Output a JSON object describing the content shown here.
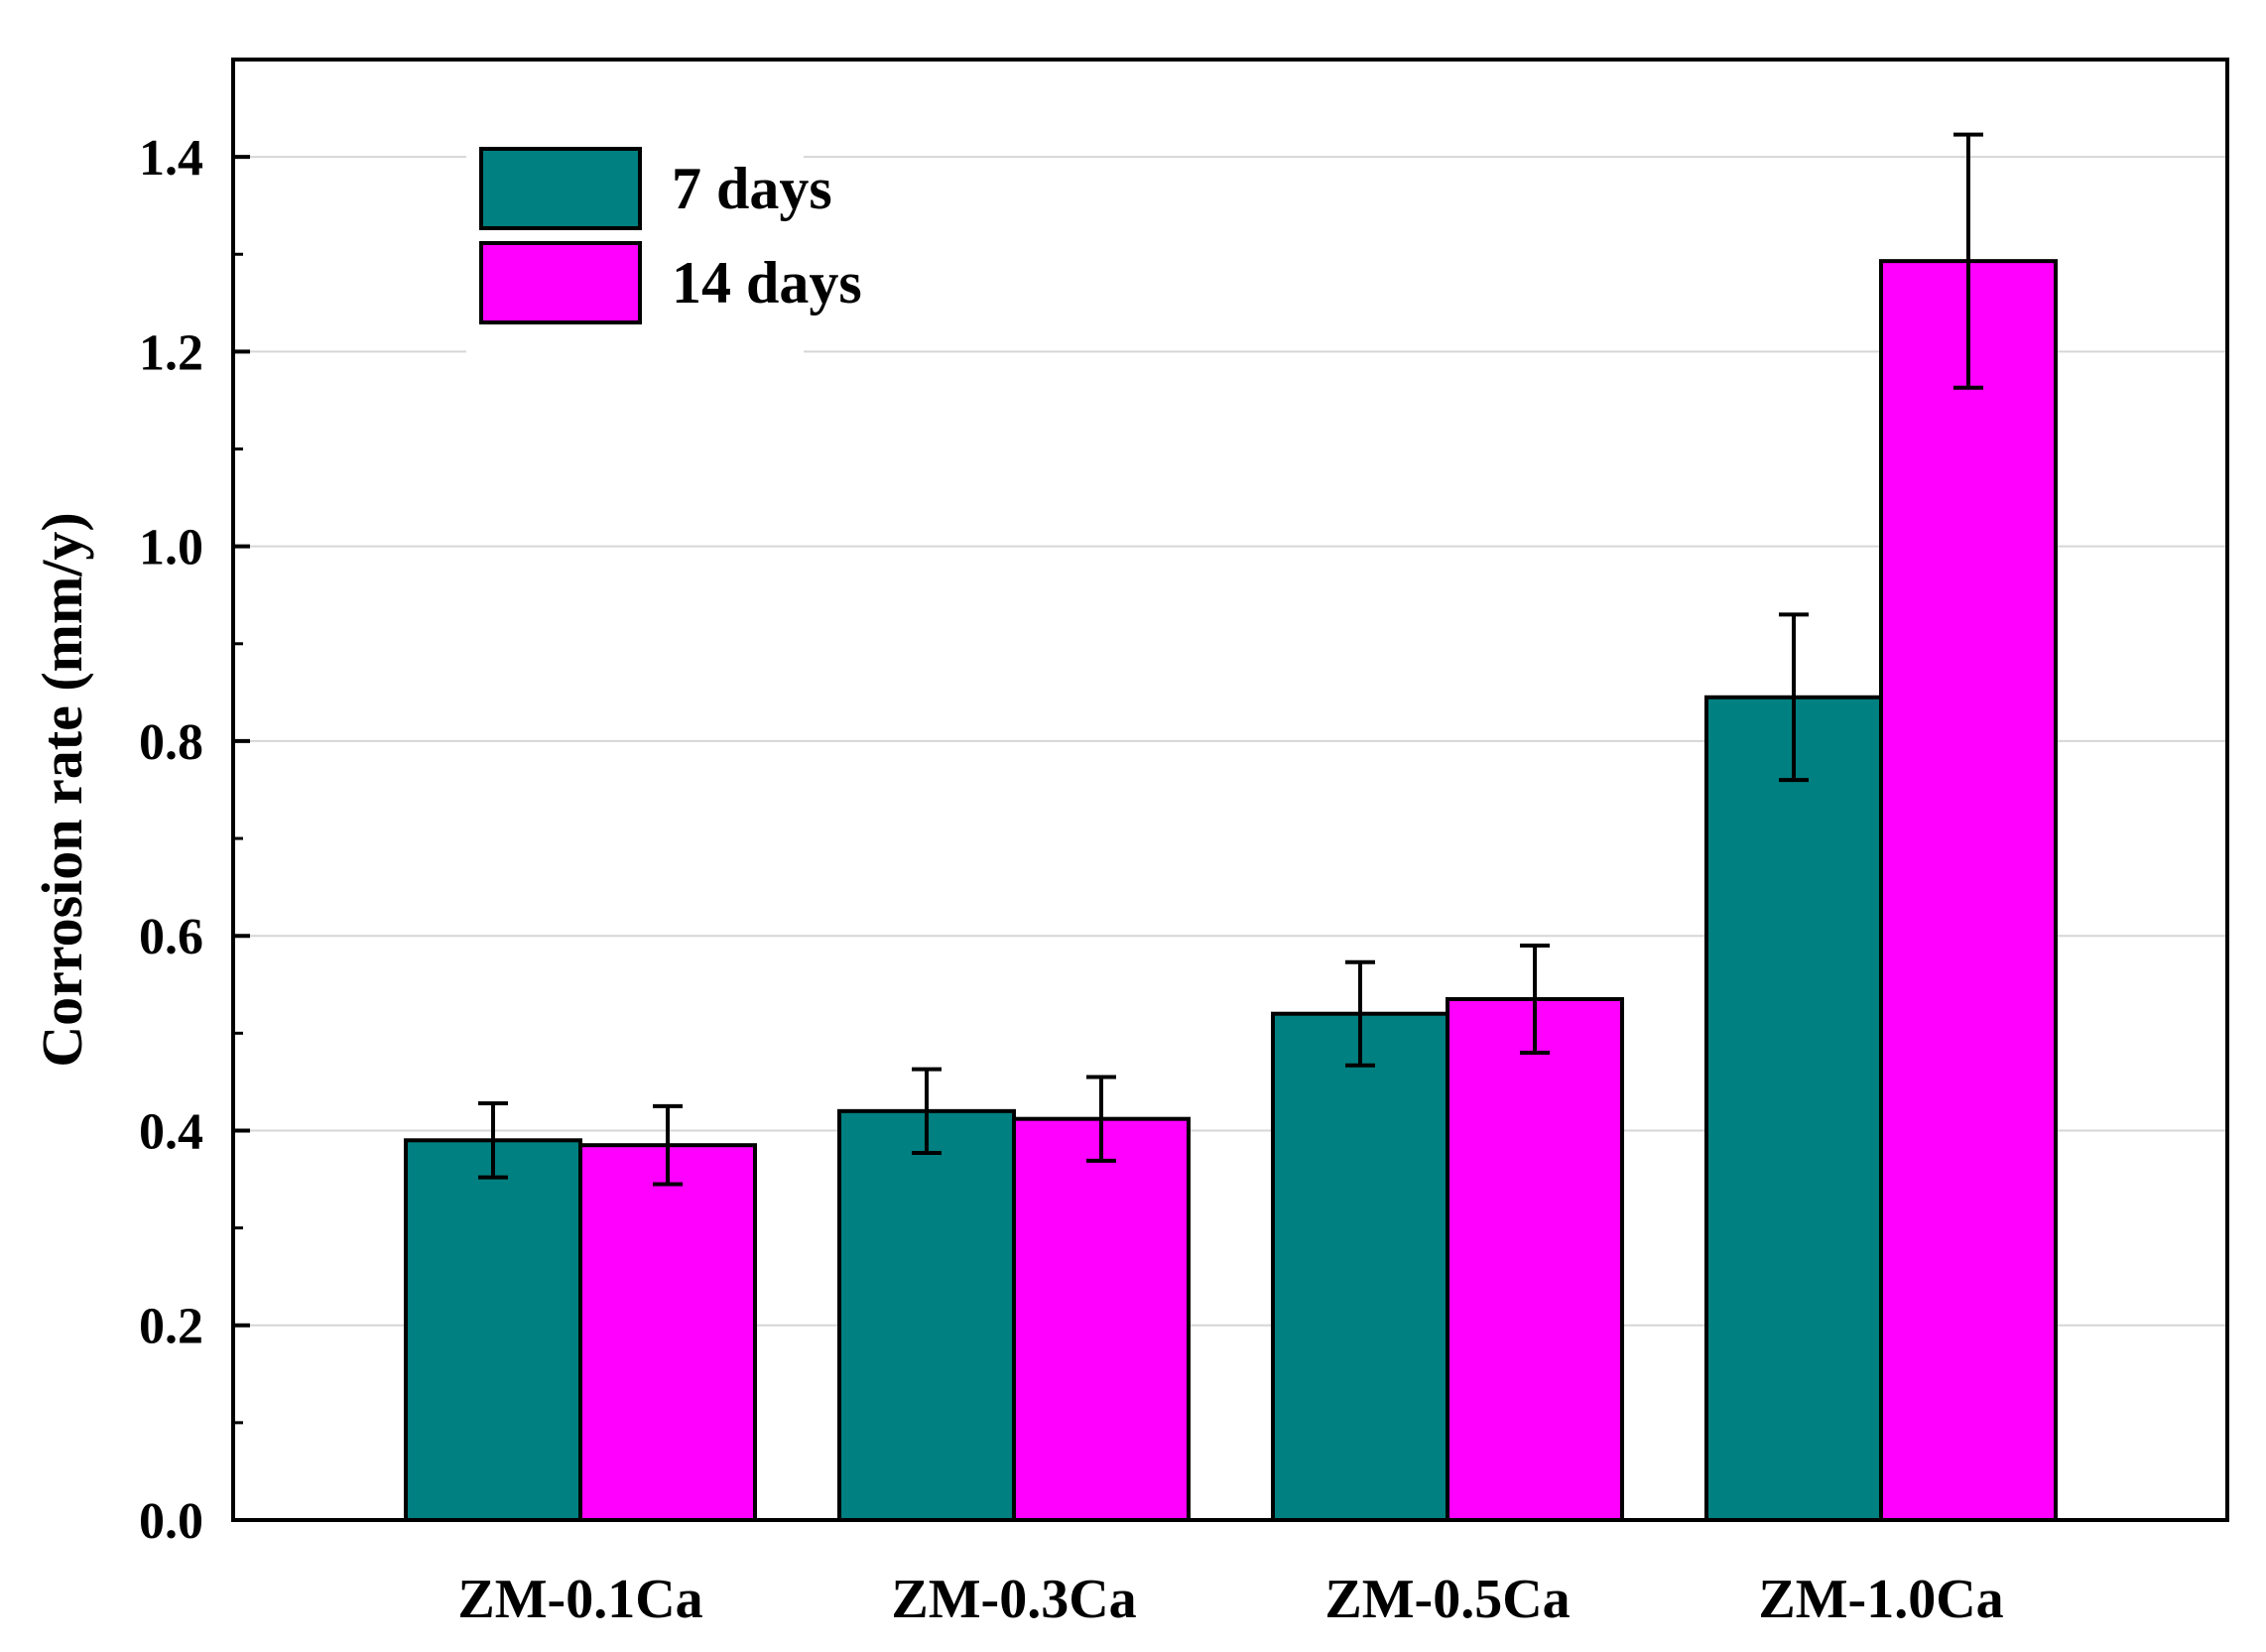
{
  "chart_data": {
    "type": "bar",
    "title": "",
    "xlabel": "",
    "ylabel": "Corrosion rate (mm/y)",
    "ylim": [
      0,
      1.5
    ],
    "yticks": [
      "0.0",
      "0.2",
      "0.4",
      "0.6",
      "0.8",
      "1.0",
      "1.2",
      "1.4"
    ],
    "grid": true,
    "legend_position": "top-left",
    "categories": [
      "ZM-0.1Ca",
      "ZM-0.3Ca",
      "ZM-0.5Ca",
      "ZM-1.0Ca"
    ],
    "series": [
      {
        "name": "7 days",
        "color": "#008080",
        "values": [
          0.39,
          0.42,
          0.52,
          0.845
        ],
        "errors": [
          0.038,
          0.043,
          0.053,
          0.085
        ]
      },
      {
        "name": "14 days",
        "color": "#ff00ff",
        "values": [
          0.385,
          0.412,
          0.535,
          1.293
        ],
        "errors": [
          0.04,
          0.043,
          0.055,
          0.13
        ]
      }
    ]
  }
}
